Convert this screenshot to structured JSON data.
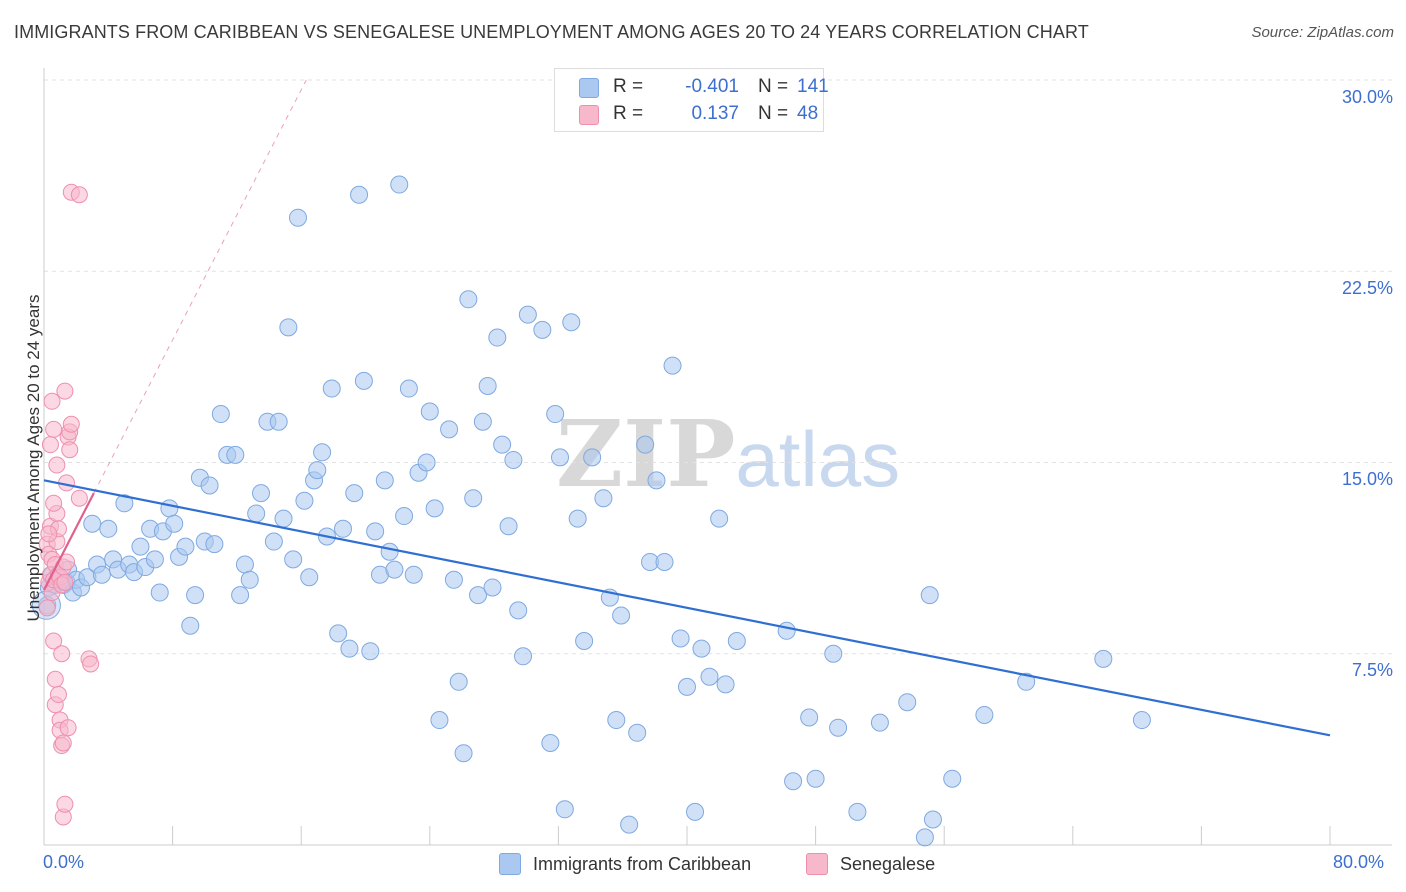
{
  "title": "IMMIGRANTS FROM CARIBBEAN VS SENEGALESE UNEMPLOYMENT AMONG AGES 20 TO 24 YEARS CORRELATION CHART",
  "source": "Source: ZipAtlas.com",
  "watermark": {
    "zip": "ZIP",
    "atlas": "atlas"
  },
  "legend": {
    "series": [
      {
        "r_label": "R =",
        "r_value": "-0.401",
        "n_label": "N =",
        "n_value": "141",
        "color": "#aac8f0"
      },
      {
        "r_label": "R =",
        "r_value": "0.137",
        "n_label": "N =",
        "n_value": "48",
        "color": "#f8b8cc"
      }
    ]
  },
  "bottom_legend": [
    {
      "label": "Immigrants from Caribbean",
      "color": "#aac8f0"
    },
    {
      "label": "Senegalese",
      "color": "#f8b8cc"
    }
  ],
  "chart_data": {
    "type": "scatter",
    "title": "IMMIGRANTS FROM CARIBBEAN VS SENEGALESE UNEMPLOYMENT AMONG AGES 20 TO 24 YEARS CORRELATION CHART",
    "xlabel": "",
    "ylabel": "Unemployment Among Ages 20 to 24 years",
    "xlim": [
      0,
      80
    ],
    "ylim": [
      0,
      30
    ],
    "x_tick_labels": [
      "0.0%",
      "80.0%"
    ],
    "y_ticks": [
      7.5,
      15.0,
      22.5,
      30.0
    ],
    "y_tick_labels": [
      "7.5%",
      "15.0%",
      "22.5%",
      "30.0%"
    ],
    "grid": true,
    "legend_position": "top-center",
    "colors": {
      "caribbean_fill": "#aac8f0",
      "caribbean_stroke": "#7fa9e0",
      "caribbean_line": "#2f6fd2",
      "senegalese_fill": "#f8b8cc",
      "senegalese_stroke": "#ee8fae",
      "senegalese_line": "#e0608e"
    },
    "series": [
      {
        "name": "Immigrants from Caribbean",
        "r": -0.401,
        "n": 141,
        "trend": {
          "x": [
            0,
            80
          ],
          "y": [
            14.3,
            4.3
          ]
        },
        "points": [
          [
            0.2,
            9.4
          ],
          [
            0.3,
            10.1
          ],
          [
            0.5,
            10.6
          ],
          [
            0.7,
            10.2
          ],
          [
            0.8,
            10.5
          ],
          [
            1.0,
            10.4
          ],
          [
            1.2,
            10.2
          ],
          [
            1.4,
            10.3
          ],
          [
            1.5,
            10.8
          ],
          [
            1.8,
            9.9
          ],
          [
            2.0,
            10.4
          ],
          [
            2.3,
            10.1
          ],
          [
            2.7,
            10.5
          ],
          [
            3.0,
            12.6
          ],
          [
            3.3,
            11.0
          ],
          [
            3.6,
            10.6
          ],
          [
            4.0,
            12.4
          ],
          [
            4.3,
            11.2
          ],
          [
            4.6,
            10.8
          ],
          [
            5.0,
            13.4
          ],
          [
            5.3,
            11.0
          ],
          [
            5.6,
            10.7
          ],
          [
            6.0,
            11.7
          ],
          [
            6.3,
            10.9
          ],
          [
            6.6,
            12.4
          ],
          [
            6.9,
            11.2
          ],
          [
            7.2,
            9.9
          ],
          [
            7.4,
            12.3
          ],
          [
            7.8,
            13.2
          ],
          [
            8.1,
            12.6
          ],
          [
            8.4,
            11.3
          ],
          [
            8.8,
            11.7
          ],
          [
            9.1,
            8.6
          ],
          [
            9.4,
            9.8
          ],
          [
            9.7,
            14.4
          ],
          [
            10.0,
            11.9
          ],
          [
            10.3,
            14.1
          ],
          [
            10.6,
            11.8
          ],
          [
            11.0,
            16.9
          ],
          [
            11.4,
            15.3
          ],
          [
            11.9,
            15.3
          ],
          [
            12.2,
            9.8
          ],
          [
            12.5,
            11.0
          ],
          [
            12.8,
            10.4
          ],
          [
            13.2,
            13.0
          ],
          [
            13.5,
            13.8
          ],
          [
            13.9,
            16.6
          ],
          [
            14.3,
            11.9
          ],
          [
            14.6,
            16.6
          ],
          [
            14.9,
            12.8
          ],
          [
            15.5,
            11.2
          ],
          [
            15.8,
            24.6
          ],
          [
            15.2,
            20.3
          ],
          [
            16.2,
            13.5
          ],
          [
            16.5,
            10.5
          ],
          [
            16.8,
            14.3
          ],
          [
            17.0,
            14.7
          ],
          [
            17.3,
            15.4
          ],
          [
            17.6,
            12.1
          ],
          [
            17.9,
            17.9
          ],
          [
            18.3,
            8.3
          ],
          [
            18.6,
            12.4
          ],
          [
            19.0,
            7.7
          ],
          [
            19.3,
            13.8
          ],
          [
            19.6,
            25.5
          ],
          [
            19.9,
            18.2
          ],
          [
            20.3,
            7.6
          ],
          [
            20.6,
            12.3
          ],
          [
            20.9,
            10.6
          ],
          [
            21.2,
            14.3
          ],
          [
            21.5,
            11.5
          ],
          [
            21.8,
            10.8
          ],
          [
            22.1,
            25.9
          ],
          [
            22.4,
            12.9
          ],
          [
            22.7,
            17.9
          ],
          [
            23.0,
            10.6
          ],
          [
            23.3,
            14.6
          ],
          [
            23.8,
            15.0
          ],
          [
            24.0,
            17.0
          ],
          [
            24.3,
            13.2
          ],
          [
            24.6,
            4.9
          ],
          [
            25.2,
            16.3
          ],
          [
            25.5,
            10.4
          ],
          [
            25.8,
            6.4
          ],
          [
            26.1,
            3.6
          ],
          [
            26.4,
            21.4
          ],
          [
            26.7,
            13.6
          ],
          [
            27.0,
            9.8
          ],
          [
            27.3,
            16.6
          ],
          [
            27.6,
            18.0
          ],
          [
            27.9,
            10.1
          ],
          [
            28.2,
            19.9
          ],
          [
            28.5,
            15.7
          ],
          [
            28.9,
            12.5
          ],
          [
            29.2,
            15.1
          ],
          [
            29.5,
            9.2
          ],
          [
            29.8,
            7.4
          ],
          [
            30.1,
            20.8
          ],
          [
            31.0,
            20.2
          ],
          [
            31.5,
            4.0
          ],
          [
            31.8,
            16.9
          ],
          [
            32.1,
            15.2
          ],
          [
            32.4,
            1.4
          ],
          [
            32.8,
            20.5
          ],
          [
            33.2,
            12.8
          ],
          [
            33.6,
            8.0
          ],
          [
            34.1,
            15.2
          ],
          [
            34.8,
            13.6
          ],
          [
            35.2,
            9.7
          ],
          [
            35.6,
            4.9
          ],
          [
            35.9,
            9.0
          ],
          [
            36.4,
            0.8
          ],
          [
            36.9,
            4.4
          ],
          [
            37.4,
            15.7
          ],
          [
            37.7,
            11.1
          ],
          [
            38.1,
            14.3
          ],
          [
            38.6,
            11.1
          ],
          [
            39.1,
            18.8
          ],
          [
            39.6,
            8.1
          ],
          [
            40.0,
            6.2
          ],
          [
            40.5,
            1.3
          ],
          [
            40.9,
            7.7
          ],
          [
            41.4,
            6.6
          ],
          [
            42.0,
            12.8
          ],
          [
            42.4,
            6.3
          ],
          [
            43.1,
            8.0
          ],
          [
            46.2,
            8.4
          ],
          [
            46.6,
            2.5
          ],
          [
            47.6,
            5.0
          ],
          [
            48.0,
            2.6
          ],
          [
            49.1,
            7.5
          ],
          [
            49.4,
            4.6
          ],
          [
            50.6,
            1.3
          ],
          [
            52.0,
            4.8
          ],
          [
            53.7,
            5.6
          ],
          [
            54.8,
            0.3
          ],
          [
            55.1,
            9.8
          ],
          [
            55.3,
            1.0
          ],
          [
            56.5,
            2.6
          ],
          [
            58.5,
            5.1
          ],
          [
            61.1,
            6.4
          ],
          [
            65.9,
            7.3
          ],
          [
            68.3,
            4.9
          ]
        ]
      },
      {
        "name": "Senegalese",
        "r": 0.137,
        "n": 48,
        "trend": {
          "x": [
            0,
            3.1
          ],
          "y": [
            10.0,
            13.8
          ]
        },
        "points": [
          [
            0.2,
            9.3
          ],
          [
            0.2,
            11.8
          ],
          [
            0.3,
            10.3
          ],
          [
            0.3,
            11.4
          ],
          [
            0.4,
            10.6
          ],
          [
            0.4,
            12.5
          ],
          [
            0.5,
            11.2
          ],
          [
            0.5,
            9.9
          ],
          [
            0.5,
            17.4
          ],
          [
            0.6,
            16.3
          ],
          [
            0.6,
            10.4
          ],
          [
            0.6,
            8.0
          ],
          [
            0.7,
            11.0
          ],
          [
            0.7,
            5.5
          ],
          [
            0.7,
            6.5
          ],
          [
            0.8,
            14.9
          ],
          [
            0.8,
            13.0
          ],
          [
            0.8,
            11.9
          ],
          [
            0.9,
            12.4
          ],
          [
            0.9,
            5.9
          ],
          [
            0.9,
            10.6
          ],
          [
            1.0,
            10.5
          ],
          [
            1.0,
            4.9
          ],
          [
            1.0,
            4.5
          ],
          [
            1.1,
            10.2
          ],
          [
            1.1,
            7.5
          ],
          [
            1.1,
            3.9
          ],
          [
            1.2,
            10.9
          ],
          [
            1.2,
            4.0
          ],
          [
            1.2,
            1.1
          ],
          [
            1.3,
            10.3
          ],
          [
            1.3,
            1.6
          ],
          [
            1.3,
            17.8
          ],
          [
            1.4,
            14.2
          ],
          [
            1.4,
            11.1
          ],
          [
            1.5,
            16.0
          ],
          [
            1.5,
            4.6
          ],
          [
            1.6,
            15.5
          ],
          [
            1.6,
            16.2
          ],
          [
            1.7,
            16.5
          ],
          [
            1.7,
            25.6
          ],
          [
            2.2,
            25.5
          ],
          [
            2.2,
            13.6
          ],
          [
            2.8,
            7.3
          ],
          [
            2.9,
            7.1
          ],
          [
            0.6,
            13.4
          ],
          [
            0.4,
            15.7
          ],
          [
            0.3,
            12.2
          ]
        ]
      }
    ]
  }
}
